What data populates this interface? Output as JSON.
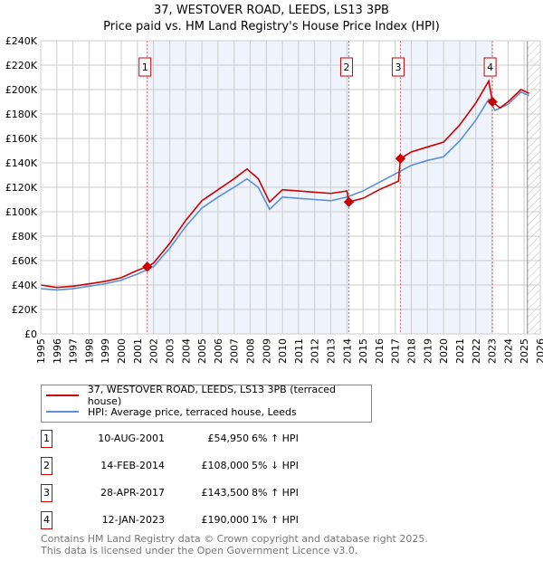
{
  "chart_data": {
    "type": "line",
    "title": "37, WESTOVER ROAD, LEEDS, LS13 3PB",
    "subtitle": "Price paid vs. HM Land Registry's House Price Index (HPI)",
    "xlim": [
      1995,
      2026
    ],
    "ylim": [
      0,
      240000
    ],
    "x_ticks": [
      "1995",
      "1996",
      "1997",
      "1998",
      "1999",
      "2000",
      "2001",
      "2002",
      "2003",
      "2004",
      "2005",
      "2006",
      "2007",
      "2008",
      "2009",
      "2010",
      "2011",
      "2012",
      "2013",
      "2014",
      "2015",
      "2016",
      "2017",
      "2018",
      "2019",
      "2020",
      "2021",
      "2022",
      "2023",
      "2024",
      "2025",
      "2026"
    ],
    "y_ticks": [
      "£0",
      "£20K",
      "£40K",
      "£60K",
      "£80K",
      "£100K",
      "£120K",
      "£140K",
      "£160K",
      "£180K",
      "£200K",
      "£220K",
      "£240K"
    ],
    "grid": true,
    "series": [
      {
        "name": "37, WESTOVER ROAD, LEEDS, LS13 3PB (terraced house)",
        "color": "#cc0000",
        "x": [
          1995,
          1996,
          1997,
          1998,
          1999,
          2000,
          2001,
          2001.6,
          2002,
          2003,
          2004,
          2005,
          2006,
          2007,
          2007.8,
          2008.5,
          2009.2,
          2010,
          2011,
          2012,
          2013,
          2014.0,
          2014.12,
          2015,
          2016,
          2017.2,
          2017.32,
          2018,
          2019,
          2020,
          2021,
          2022,
          2022.8,
          2023.03,
          2023.5,
          2024,
          2024.8,
          2025.3
        ],
        "y": [
          40000,
          38000,
          39000,
          41000,
          43000,
          46000,
          52000,
          54950,
          58000,
          74000,
          93000,
          109000,
          118000,
          127000,
          135000,
          127000,
          108000,
          118000,
          117000,
          116000,
          115000,
          117000,
          108000,
          111000,
          118000,
          125000,
          143500,
          149000,
          153000,
          157000,
          171000,
          189000,
          207000,
          190000,
          185000,
          190000,
          200000,
          197000
        ]
      },
      {
        "name": "HPI: Average price, terraced house, Leeds",
        "color": "#5b8fd6",
        "x": [
          1995,
          1996,
          1997,
          1998,
          1999,
          2000,
          2001,
          2002,
          2003,
          2004,
          2005,
          2006,
          2007,
          2007.8,
          2008.5,
          2009.2,
          2010,
          2011,
          2012,
          2013,
          2014,
          2015,
          2016,
          2017,
          2018,
          2019,
          2020,
          2021,
          2022,
          2022.8,
          2023.2,
          2024,
          2024.8,
          2025.3
        ],
        "y": [
          37000,
          36000,
          37000,
          39000,
          41000,
          44000,
          49000,
          55000,
          70000,
          88000,
          103000,
          112000,
          120000,
          127000,
          120000,
          102000,
          112000,
          111000,
          110000,
          109000,
          112000,
          117000,
          124000,
          131000,
          138000,
          142000,
          145000,
          158000,
          175000,
          192000,
          183000,
          188000,
          198000,
          195000
        ]
      }
    ],
    "sales": [
      {
        "n": "1",
        "x": 2001.61,
        "price": 54950,
        "date": "10-AUG-2001",
        "price_label": "£54,950",
        "hpi": "6% ↑ HPI"
      },
      {
        "n": "2",
        "x": 2014.12,
        "price": 108000,
        "date": "14-FEB-2014",
        "price_label": "£108,000",
        "hpi": "5% ↓ HPI"
      },
      {
        "n": "3",
        "x": 2017.32,
        "price": 143500,
        "date": "28-APR-2017",
        "price_label": "£143,500",
        "hpi": "8% ↑ HPI"
      },
      {
        "n": "4",
        "x": 2023.03,
        "price": 190000,
        "date": "12-JAN-2023",
        "price_label": "£190,000",
        "hpi": "1% ↑ HPI"
      }
    ],
    "shaded_ranges": [
      [
        2001.61,
        2014.12
      ],
      [
        2017.32,
        2023.03
      ]
    ],
    "hatched_from": 2025.2
  },
  "footer": {
    "line1": "Contains HM Land Registry data © Crown copyright and database right 2025.",
    "line2": "This data is licensed under the Open Government Licence v3.0."
  }
}
